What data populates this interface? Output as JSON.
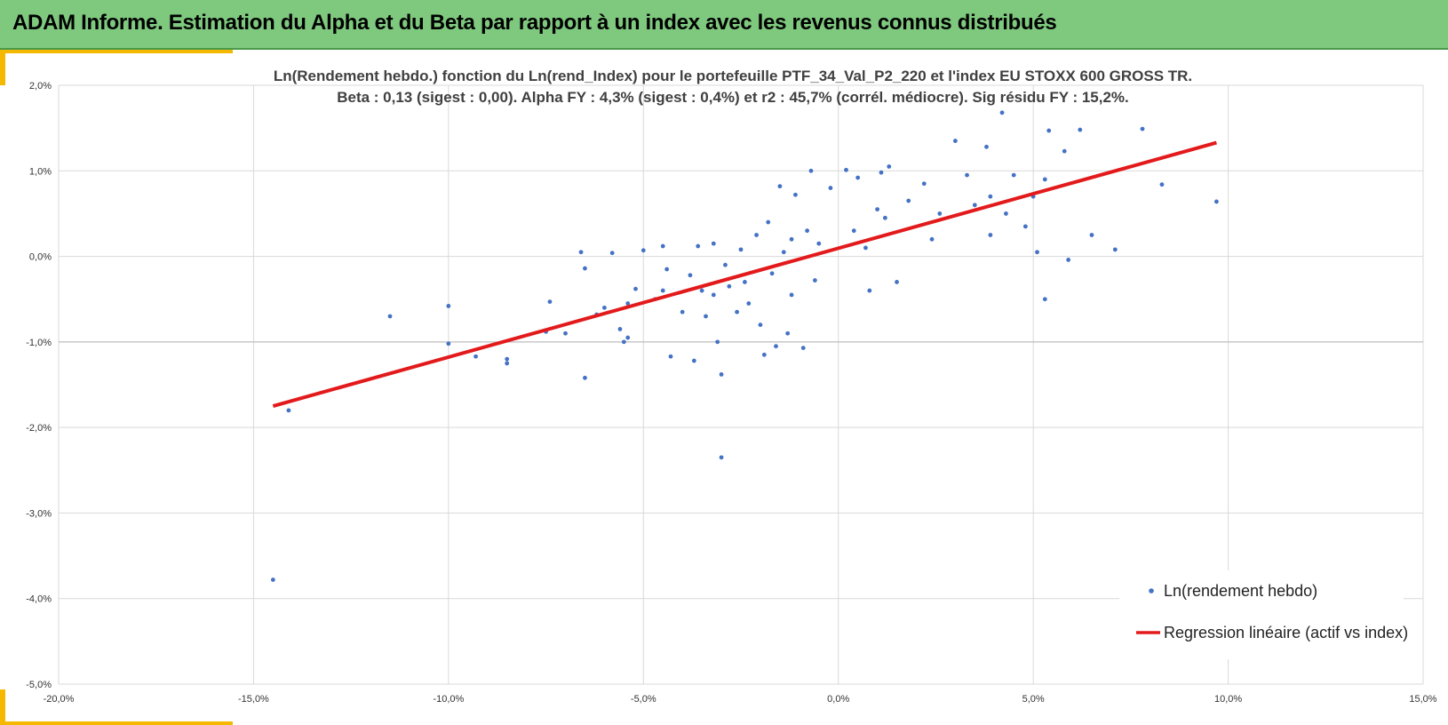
{
  "header": {
    "title": "ADAM Informe. Estimation du Alpha et du Beta par rapport à un index avec les revenus connus distribués"
  },
  "colors": {
    "banner": "#7fc97f",
    "accent": "#f5b800",
    "points": "#4472c4",
    "regression": "#e31a1c"
  },
  "chart_data": {
    "type": "scatter",
    "title_line1": "Ln(Rendement hebdo.) fonction du Ln(rend_Index) pour le portefeuille PTF_34_Val_P2_220 et l'index EU STOXX 600 GROSS TR.",
    "title_line2": "Beta : 0,13 (sigest : 0,00). Alpha FY : 4,3% (sigest : 0,4%) et r2 : 45,7% (corrél. médiocre). Sig résidu FY : 15,2%.",
    "xlabel": "",
    "ylabel": "",
    "xlim": [
      -20,
      15
    ],
    "ylim": [
      -5,
      2
    ],
    "x_ticks": [
      -20,
      -15,
      -10,
      -5,
      0,
      5,
      10,
      15
    ],
    "y_ticks": [
      2,
      1,
      0,
      -1,
      -2,
      -3,
      -4,
      -5
    ],
    "x_tick_labels": [
      "-20,0%",
      "-15,0%",
      "-10,0%",
      "-5,0%",
      "0,0%",
      "5,0%",
      "10,0%",
      "15,0%"
    ],
    "y_tick_labels": [
      "2,0%",
      "1,0%",
      "0,0%",
      "-1,0%",
      "-2,0%",
      "-3,0%",
      "-4,0%",
      "-5,0%"
    ],
    "grid": true,
    "legend_position": "bottom-right",
    "series": [
      {
        "name": "Ln(rendement hebdo)",
        "type": "scatter",
        "points": [
          [
            -14.5,
            -3.78
          ],
          [
            -14.1,
            -1.8
          ],
          [
            -11.5,
            -0.7
          ],
          [
            -10,
            -1.02
          ],
          [
            -10,
            -0.58
          ],
          [
            -9.3,
            -1.17
          ],
          [
            -8.5,
            -1.2
          ],
          [
            -8.5,
            -1.25
          ],
          [
            -7.5,
            -0.88
          ],
          [
            -7.4,
            -0.53
          ],
          [
            -7,
            -0.9
          ],
          [
            -6.6,
            0.05
          ],
          [
            -6.5,
            -0.14
          ],
          [
            -6.5,
            -1.42
          ],
          [
            -6.2,
            -0.68
          ],
          [
            -6,
            -0.6
          ],
          [
            -5.8,
            0.04
          ],
          [
            -5.6,
            -0.85
          ],
          [
            -5.5,
            -1.0
          ],
          [
            -5.4,
            -0.95
          ],
          [
            -5.4,
            -0.55
          ],
          [
            -5.2,
            -0.38
          ],
          [
            -5,
            0.07
          ],
          [
            -4.7,
            -0.5
          ],
          [
            -4.5,
            0.12
          ],
          [
            -4.5,
            -0.4
          ],
          [
            -4.4,
            -0.15
          ],
          [
            -4.3,
            -1.17
          ],
          [
            -4,
            -0.65
          ],
          [
            -3.8,
            -0.22
          ],
          [
            -3.7,
            -1.22
          ],
          [
            -3.6,
            0.12
          ],
          [
            -3.5,
            -0.4
          ],
          [
            -3.4,
            -0.7
          ],
          [
            -3.2,
            0.15
          ],
          [
            -3.2,
            -0.45
          ],
          [
            -3.1,
            -1.0
          ],
          [
            -3,
            -1.38
          ],
          [
            -2.9,
            -0.1
          ],
          [
            -2.8,
            -0.35
          ],
          [
            -2.6,
            -0.65
          ],
          [
            -2.5,
            0.08
          ],
          [
            -2.4,
            -0.3
          ],
          [
            -2.3,
            -0.55
          ],
          [
            -2.1,
            0.25
          ],
          [
            -2,
            -0.8
          ],
          [
            -1.9,
            -1.15
          ],
          [
            -1.8,
            0.4
          ],
          [
            -1.7,
            -0.2
          ],
          [
            -1.6,
            -1.05
          ],
          [
            -1.5,
            0.82
          ],
          [
            -1.3,
            -0.9
          ],
          [
            -1.2,
            0.2
          ],
          [
            -1.2,
            -0.45
          ],
          [
            -1.1,
            0.72
          ],
          [
            -0.9,
            -1.07
          ],
          [
            -0.8,
            0.3
          ],
          [
            -0.7,
            1.0
          ],
          [
            -0.5,
            0.15
          ],
          [
            -0.2,
            0.8
          ],
          [
            0.2,
            1.01
          ],
          [
            0.5,
            0.92
          ],
          [
            0.8,
            -0.4
          ],
          [
            1,
            0.55
          ],
          [
            1.1,
            0.98
          ],
          [
            1.3,
            1.05
          ],
          [
            1.5,
            -0.3
          ],
          [
            1.8,
            0.65
          ],
          [
            2.2,
            0.85
          ],
          [
            2.6,
            0.5
          ],
          [
            3,
            1.35
          ],
          [
            3.3,
            0.95
          ],
          [
            3.5,
            0.6
          ],
          [
            3.8,
            1.28
          ],
          [
            3.9,
            0.7
          ],
          [
            4.2,
            1.68
          ],
          [
            4.3,
            0.5
          ],
          [
            4.5,
            0.95
          ],
          [
            4.8,
            0.35
          ],
          [
            5,
            0.7
          ],
          [
            5.1,
            0.05
          ],
          [
            5.3,
            0.9
          ],
          [
            5.3,
            -0.5
          ],
          [
            5.4,
            1.47
          ],
          [
            5.8,
            1.23
          ],
          [
            5.9,
            -0.04
          ],
          [
            6.2,
            1.48
          ],
          [
            6.5,
            0.25
          ],
          [
            7.1,
            0.08
          ],
          [
            7.8,
            1.49
          ],
          [
            8.3,
            0.84
          ],
          [
            9.7,
            0.64
          ],
          [
            -3.0,
            -2.35
          ],
          [
            -0.6,
            -0.28
          ],
          [
            0.4,
            0.3
          ],
          [
            0.7,
            0.1
          ],
          [
            1.2,
            0.45
          ],
          [
            -1.4,
            0.05
          ],
          [
            2.4,
            0.2
          ],
          [
            3.9,
            0.25
          ]
        ]
      },
      {
        "name": "Regression linéaire (actif vs index)",
        "type": "line",
        "points": [
          [
            -14.5,
            -1.75
          ],
          [
            9.7,
            1.33
          ]
        ]
      }
    ]
  }
}
